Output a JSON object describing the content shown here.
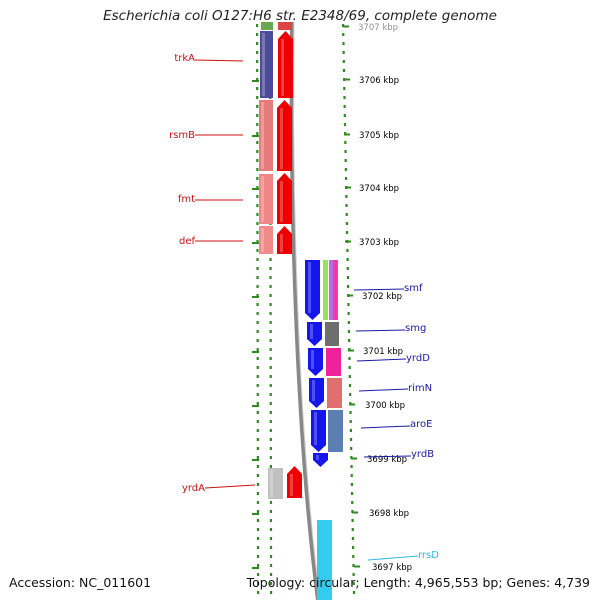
{
  "header": {
    "title": "Escherichia coli O127:H6 str. E2348/69, complete genome"
  },
  "footer": {
    "accession": "Accession: NC_011601",
    "topology": "Topology: circular; Length: 4,965,553 bp; Genes: 4,739"
  },
  "colors": {
    "left_gene_label": "#cc1111",
    "right_gene_label": "#1a1aa8",
    "rrs_label": "#33b5e5",
    "track_dots": "#2e8b1e",
    "genome_line": "#888888"
  },
  "map": {
    "ticks": [
      {
        "label": "3707 kbp"
      },
      {
        "label": "3706 kbp"
      },
      {
        "label": "3705 kbp"
      },
      {
        "label": "3704 kbp"
      },
      {
        "label": "3703 kbp"
      },
      {
        "label": "3702 kbp"
      },
      {
        "label": "3701 kbp"
      },
      {
        "label": "3700 kbp"
      },
      {
        "label": "3699 kbp"
      },
      {
        "label": "3698 kbp"
      },
      {
        "label": "3697 kbp"
      }
    ],
    "left_genes": [
      {
        "label": "trkA"
      },
      {
        "label": "rsmB"
      },
      {
        "label": "fmt"
      },
      {
        "label": "def"
      },
      {
        "label": "yrdA"
      }
    ],
    "right_genes": [
      {
        "label": "smf"
      },
      {
        "label": "smg"
      },
      {
        "label": "yrdD"
      },
      {
        "label": "rimN"
      },
      {
        "label": "aroE"
      },
      {
        "label": "yrdB"
      },
      {
        "label": "rrsD"
      }
    ]
  }
}
